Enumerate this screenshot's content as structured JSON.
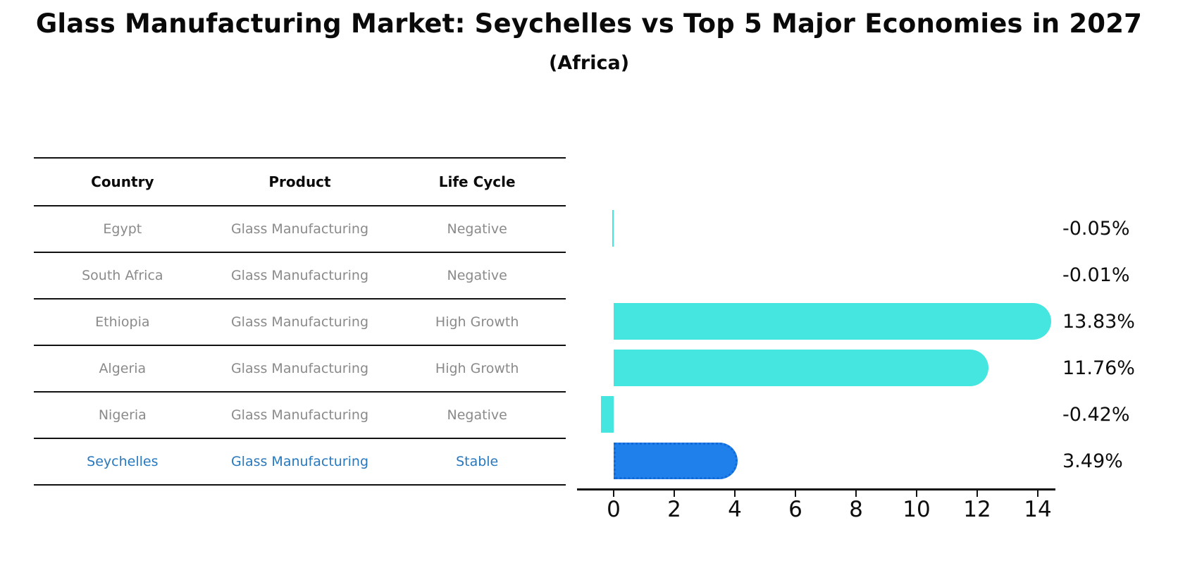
{
  "header": {
    "title": "Glass Manufacturing Market: Seychelles vs Top 5 Major Economies in 2027",
    "subtitle": "(Africa)"
  },
  "table": {
    "columns": [
      "Country",
      "Product",
      "Life Cycle"
    ],
    "rows": [
      {
        "country": "Egypt",
        "product": "Glass Manufacturing",
        "life_cycle": "Negative",
        "highlight": false
      },
      {
        "country": "South Africa",
        "product": "Glass Manufacturing",
        "life_cycle": "Negative",
        "highlight": false
      },
      {
        "country": "Ethiopia",
        "product": "Glass Manufacturing",
        "life_cycle": "High Growth",
        "highlight": false
      },
      {
        "country": "Algeria",
        "product": "Glass Manufacturing",
        "life_cycle": "High Growth",
        "highlight": false
      },
      {
        "country": "Nigeria",
        "product": "Glass Manufacturing",
        "life_cycle": "Negative",
        "highlight": false
      },
      {
        "country": "Seychelles",
        "product": "Glass Manufacturing",
        "life_cycle": "Stable",
        "highlight": true
      }
    ]
  },
  "chart_data": {
    "type": "bar",
    "orientation": "horizontal",
    "title": "Glass Manufacturing Market: Seychelles vs Top 5 Major Economies in 2027 (Africa)",
    "categories": [
      "Egypt",
      "South Africa",
      "Ethiopia",
      "Algeria",
      "Nigeria",
      "Seychelles"
    ],
    "values": [
      -0.05,
      -0.01,
      13.83,
      11.76,
      -0.42,
      3.49
    ],
    "value_labels": [
      "-0.05%",
      "-0.01%",
      "13.83%",
      "11.76%",
      "-0.42%",
      "3.49%"
    ],
    "x_ticks": [
      0,
      2,
      4,
      6,
      8,
      10,
      12,
      14
    ],
    "xlim": [
      -1.2,
      14.6
    ],
    "grid": false,
    "legend": "none",
    "bar_colors": [
      "cyan",
      "cyan",
      "cyan",
      "cyan",
      "cyan",
      "blue"
    ],
    "colors": {
      "cyan": "#45e6e0",
      "blue": "#1f80ec",
      "blue_border": "#1269d8",
      "muted_text": "#8a8a8a",
      "highlight_text": "#2878be"
    },
    "highlight_category": "Seychelles"
  }
}
